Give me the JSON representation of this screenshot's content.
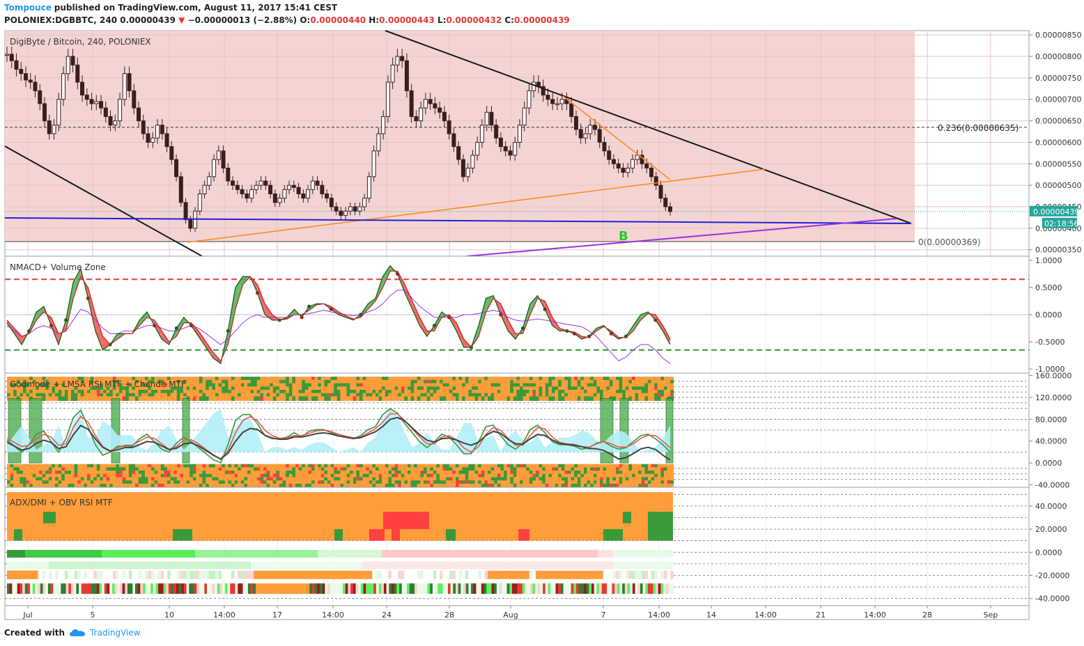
{
  "header": {
    "author": "Tompouce",
    "published": "published on TradingView.com, August 11, 2017 15:41 CEST",
    "symbol": "POLONIEX:DGBBTC, 240",
    "price": "0.00000439",
    "arrow": "▼",
    "change": "−0.00000013 (−2.88%)",
    "ohlc_o_label": "O:",
    "ohlc_o": "0.00000440",
    "ohlc_h_label": "H:",
    "ohlc_h": "0.00000443",
    "ohlc_l_label": "L:",
    "ohlc_l": "0.00000432",
    "ohlc_c_label": "C:",
    "ohlc_c": "0.00000439"
  },
  "footer": {
    "created_with": "Created with",
    "brand": "TradingView"
  },
  "colors": {
    "zone_fill": "#f4d3d3",
    "trend_black": "#1a1a1a",
    "trend_orange": "#ff8c1a",
    "support_blue": "#1e22d6",
    "support_purple": "#9b30e0",
    "up_green": "#2e7d32",
    "down_red": "#e53935",
    "heat_orange": "#ff9d3b",
    "heat_green": "#3a9a3a",
    "cyan": "#b2f0f7"
  },
  "chart_data": [
    {
      "type": "candlestick",
      "title": "DigiByte / Bitcoin, 240, POLONIEX",
      "x_ticks": [
        "Jul",
        "5",
        "10",
        "14:00",
        "17",
        "14:00",
        "24",
        "28",
        "Aug",
        "7",
        "14:00",
        "14",
        "14:00",
        "21",
        "14:00",
        "28",
        "Sep"
      ],
      "y_ticks": [
        "0.00000850",
        "0.00000800",
        "0.00000750",
        "0.00000700",
        "0.00000650",
        "0.00000600",
        "0.00000550",
        "0.00000500",
        "0.00000450",
        "0.00000400",
        "0.00000350"
      ],
      "ylim": [
        3.35e-06,
        8.6e-06
      ],
      "fib_upper_label": "0.236(0.00000635)",
      "fib_upper": 6.35e-06,
      "fib_lower_label": "0(0.00000369)",
      "fib_lower": 3.69e-06,
      "last_price_label": "0.00000439",
      "countdown_label": "02:18:56",
      "annotation": "B",
      "close_series": [
        8.05e-06,
        7.9e-06,
        7.7e-06,
        7.6e-06,
        7.45e-06,
        7.4e-06,
        7.2e-06,
        6.9e-06,
        6.5e-06,
        6.2e-06,
        6.4e-06,
        7e-06,
        7.6e-06,
        8e-06,
        7.8e-06,
        7.4e-06,
        7.1e-06,
        7e-06,
        6.9e-06,
        6.95e-06,
        6.8e-06,
        6.6e-06,
        6.4e-06,
        6.5e-06,
        7e-06,
        7.6e-06,
        7.2e-06,
        6.8e-06,
        6.5e-06,
        6.2e-06,
        6e-06,
        6.1e-06,
        6.4e-06,
        6.2e-06,
        5.9e-06,
        5.6e-06,
        5.2e-06,
        4.6e-06,
        4.2e-06,
        4e-06,
        4.4e-06,
        4.8e-06,
        5e-06,
        5.2e-06,
        5.6e-06,
        5.8e-06,
        5.4e-06,
        5.1e-06,
        5e-06,
        4.9e-06,
        4.8e-06,
        4.7e-06,
        4.9e-06,
        5e-06,
        5.1e-06,
        5e-06,
        4.8e-06,
        4.6e-06,
        4.7e-06,
        4.9e-06,
        5e-06,
        4.95e-06,
        4.8e-06,
        4.7e-06,
        4.9e-06,
        5.1e-06,
        5e-06,
        4.8e-06,
        4.7e-06,
        4.5e-06,
        4.4e-06,
        4.3e-06,
        4.4e-06,
        4.5e-06,
        4.4e-06,
        4.5e-06,
        4.7e-06,
        5.2e-06,
        5.8e-06,
        6.2e-06,
        6.6e-06,
        7.4e-06,
        7.8e-06,
        8e-06,
        7.9e-06,
        7.2e-06,
        6.6e-06,
        6.5e-06,
        6.8e-06,
        7e-06,
        6.9e-06,
        6.8e-06,
        6.7e-06,
        6.5e-06,
        6.2e-06,
        5.9e-06,
        5.6e-06,
        5.2e-06,
        5.4e-06,
        5.7e-06,
        6e-06,
        6.4e-06,
        6.7e-06,
        6.4e-06,
        6.1e-06,
        5.9e-06,
        5.8e-06,
        5.7e-06,
        6e-06,
        6.4e-06,
        6.8e-06,
        7.2e-06,
        7.4e-06,
        7.3e-06,
        7.1e-06,
        7e-06,
        6.9e-06,
        6.9e-06,
        7e-06,
        6.9e-06,
        6.6e-06,
        6.3e-06,
        6.1e-06,
        6.2e-06,
        6.4e-06,
        6.3e-06,
        6e-06,
        5.8e-06,
        5.6e-06,
        5.5e-06,
        5.4e-06,
        5.3e-06,
        5.4e-06,
        5.6e-06,
        5.7e-06,
        5.5e-06,
        5.4e-06,
        5.2e-06,
        5e-06,
        4.7e-06,
        4.5e-06,
        4.39e-06
      ]
    },
    {
      "type": "line",
      "title": "NMACD+ Volume Zone",
      "y_ticks": [
        "1.0000",
        "0.5000",
        "0.0000",
        "-0.5000",
        "-1.0000"
      ],
      "ylim": [
        -1.05,
        1.05
      ],
      "upper_level": 0.65,
      "lower_level": -0.65,
      "macd": [
        -0.15,
        -0.35,
        -0.55,
        -0.3,
        0.05,
        0.15,
        -0.2,
        -0.55,
        -0.1,
        0.6,
        0.85,
        0.3,
        -0.3,
        -0.65,
        -0.55,
        -0.35,
        -0.35,
        -0.35,
        -0.1,
        0.05,
        -0.2,
        -0.45,
        -0.55,
        -0.25,
        -0.05,
        -0.2,
        -0.4,
        -0.6,
        -0.8,
        -0.9,
        -0.3,
        0.5,
        0.7,
        0.7,
        0.4,
        0.0,
        -0.1,
        -0.1,
        -0.05,
        0.1,
        -0.05,
        0.15,
        0.2,
        0.2,
        0.1,
        0.0,
        -0.05,
        -0.1,
        0.0,
        0.2,
        0.3,
        0.7,
        0.9,
        0.75,
        0.4,
        0.1,
        -0.2,
        -0.4,
        -0.2,
        0.05,
        -0.05,
        -0.3,
        -0.6,
        -0.6,
        -0.2,
        0.3,
        0.35,
        0.0,
        -0.3,
        -0.45,
        -0.25,
        0.2,
        0.35,
        0.1,
        -0.2,
        -0.3,
        -0.3,
        -0.35,
        -0.45,
        -0.4,
        -0.25,
        -0.2,
        -0.35,
        -0.45,
        -0.4,
        -0.2,
        0.0,
        0.05,
        -0.1,
        -0.3,
        -0.55
      ],
      "signal": [
        -0.1,
        -0.25,
        -0.4,
        -0.35,
        -0.1,
        0.05,
        -0.05,
        -0.35,
        -0.3,
        0.3,
        0.7,
        0.5,
        0.0,
        -0.4,
        -0.55,
        -0.45,
        -0.35,
        -0.35,
        -0.2,
        -0.05,
        -0.1,
        -0.3,
        -0.5,
        -0.4,
        -0.15,
        -0.15,
        -0.3,
        -0.5,
        -0.7,
        -0.85,
        -0.55,
        0.1,
        0.55,
        0.7,
        0.55,
        0.2,
        0.0,
        -0.1,
        -0.08,
        0.0,
        0.0,
        0.08,
        0.18,
        0.2,
        0.15,
        0.05,
        -0.02,
        -0.08,
        -0.05,
        0.1,
        0.25,
        0.5,
        0.8,
        0.8,
        0.55,
        0.25,
        -0.05,
        -0.3,
        -0.3,
        -0.05,
        0.0,
        -0.15,
        -0.45,
        -0.6,
        -0.4,
        0.05,
        0.3,
        0.2,
        -0.1,
        -0.35,
        -0.35,
        0.0,
        0.3,
        0.25,
        -0.05,
        -0.25,
        -0.3,
        -0.32,
        -0.4,
        -0.42,
        -0.3,
        -0.22,
        -0.3,
        -0.42,
        -0.42,
        -0.3,
        -0.1,
        0.02,
        0.0,
        -0.2,
        -0.45
      ],
      "purple": [
        -0.2,
        -0.3,
        -0.4,
        -0.35,
        -0.25,
        -0.2,
        -0.25,
        -0.35,
        -0.3,
        -0.1,
        0.1,
        0.05,
        -0.1,
        -0.25,
        -0.35,
        -0.35,
        -0.3,
        -0.3,
        -0.25,
        -0.2,
        -0.2,
        -0.25,
        -0.3,
        -0.3,
        -0.25,
        -0.2,
        -0.25,
        -0.35,
        -0.45,
        -0.55,
        -0.45,
        -0.3,
        -0.15,
        -0.05,
        0.0,
        -0.05,
        -0.05,
        -0.05,
        -0.05,
        0.0,
        0.0,
        0.02,
        0.05,
        0.08,
        0.05,
        0.02,
        0.0,
        -0.02,
        0.0,
        0.05,
        0.1,
        0.2,
        0.35,
        0.45,
        0.45,
        0.3,
        0.15,
        0.05,
        -0.05,
        -0.05,
        -0.05,
        -0.05,
        0.0,
        0.0,
        0.02,
        0.05,
        0.08,
        0.05,
        -0.05,
        -0.1,
        -0.12,
        -0.1,
        -0.08,
        -0.1,
        -0.12,
        -0.15,
        -0.18,
        -0.2,
        -0.22,
        -0.3,
        -0.4,
        -0.55,
        -0.7,
        -0.85,
        -0.78,
        -0.65,
        -0.55,
        -0.55,
        -0.65,
        -0.8,
        -0.9
      ]
    },
    {
      "type": "heatmap",
      "title": "Godmode + LMSA RSI MTF + Chande MTF",
      "y_ticks": [
        "160.0000",
        "120.0000",
        "80.0000",
        "40.0000",
        "0.0000",
        "-40.0000"
      ],
      "ylim": [
        -42,
        162
      ]
    },
    {
      "type": "heatmap",
      "title": "ADX/DMI + OBV RSI MTF",
      "y_ticks": [
        "40.0000",
        "20.0000",
        "0.0000",
        "-20.0000",
        "-40.0000"
      ],
      "ylim": [
        -45,
        55
      ]
    }
  ]
}
